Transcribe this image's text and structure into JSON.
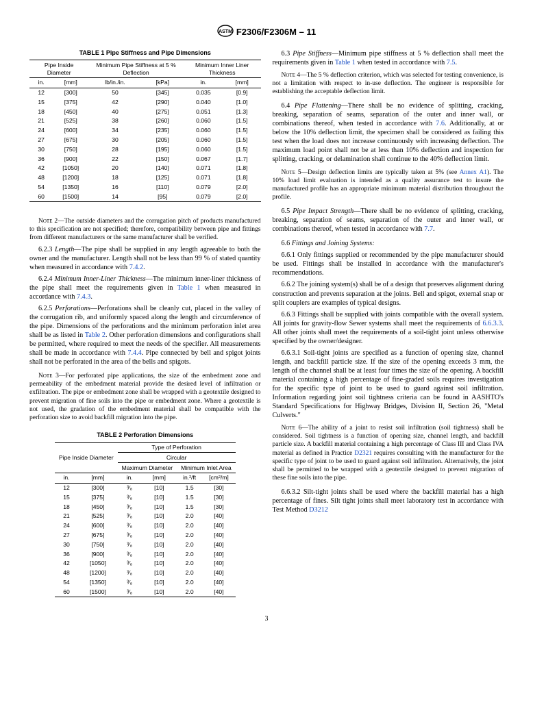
{
  "doc_code": "F2306/F2306M – 11",
  "table1": {
    "title": "TABLE 1 Pipe Stiffness and Pipe Dimensions",
    "headers": {
      "col1": "Pipe Inside Diameter",
      "col2": "Minimum Pipe Stiffness at 5 % Deflection",
      "col3": "Minimum Inner Liner Thickness",
      "u_in": "in.",
      "u_mm": "[mm]",
      "u_lb": "lb/in./in.",
      "u_kpa": "[kPa]",
      "u_in2": "in.",
      "u_mm2": "[mm]"
    },
    "rows": [
      [
        "12",
        "[300]",
        "50",
        "[345]",
        "0.035",
        "[0.9]"
      ],
      [
        "15",
        "[375]",
        "42",
        "[290]",
        "0.040",
        "[1.0]"
      ],
      [
        "18",
        "[450]",
        "40",
        "[275]",
        "0.051",
        "[1.3]"
      ],
      [
        "21",
        "[525]",
        "38",
        "[260]",
        "0.060",
        "[1.5]"
      ],
      [
        "24",
        "[600]",
        "34",
        "[235]",
        "0.060",
        "[1.5]"
      ],
      [
        "27",
        "[675]",
        "30",
        "[205]",
        "0.060",
        "[1.5]"
      ],
      [
        "30",
        "[750]",
        "28",
        "[195]",
        "0.060",
        "[1.5]"
      ],
      [
        "36",
        "[900]",
        "22",
        "[150]",
        "0.067",
        "[1.7]"
      ],
      [
        "42",
        "[1050]",
        "20",
        "[140]",
        "0.071",
        "[1.8]"
      ],
      [
        "48",
        "[1200]",
        "18",
        "[125]",
        "0.071",
        "[1.8]"
      ],
      [
        "54",
        "[1350]",
        "16",
        "[110]",
        "0.079",
        "[2.0]"
      ],
      [
        "60",
        "[1500]",
        "14",
        "[95]",
        "0.079",
        "[2.0]"
      ]
    ]
  },
  "table2": {
    "title": "TABLE 2 Perforation Dimensions",
    "headers": {
      "col1": "Pipe Inside Diameter",
      "top": "Type of Perforation",
      "group": "Circular",
      "sub1": "Maximum Diameter",
      "sub2": "Minimum Inlet Area",
      "u_in": "in.",
      "u_mm": "[mm]",
      "u_in2": "in.",
      "u_mm2": "[mm]",
      "u_area1": "in.²/ft",
      "u_area2": "[cm²/m]"
    },
    "rows": [
      [
        "12",
        "[300]",
        "³⁄₈",
        "[10]",
        "1.5",
        "[30]"
      ],
      [
        "15",
        "[375]",
        "³⁄₈",
        "[10]",
        "1.5",
        "[30]"
      ],
      [
        "18",
        "[450]",
        "³⁄₈",
        "[10]",
        "1.5",
        "[30]"
      ],
      [
        "21",
        "[525]",
        "³⁄₈",
        "[10]",
        "2.0",
        "[40]"
      ],
      [
        "24",
        "[600]",
        "³⁄₈",
        "[10]",
        "2.0",
        "[40]"
      ],
      [
        "27",
        "[675]",
        "³⁄₈",
        "[10]",
        "2.0",
        "[40]"
      ],
      [
        "30",
        "[750]",
        "³⁄₈",
        "[10]",
        "2.0",
        "[40]"
      ],
      [
        "36",
        "[900]",
        "³⁄₈",
        "[10]",
        "2.0",
        "[40]"
      ],
      [
        "42",
        "[1050]",
        "³⁄₈",
        "[10]",
        "2.0",
        "[40]"
      ],
      [
        "48",
        "[1200]",
        "³⁄₈",
        "[10]",
        "2.0",
        "[40]"
      ],
      [
        "54",
        "[1350]",
        "³⁄₈",
        "[10]",
        "2.0",
        "[40]"
      ],
      [
        "60",
        "[1500]",
        "³⁄₈",
        "[10]",
        "2.0",
        "[40]"
      ]
    ]
  },
  "left": {
    "note2_label": "Note 2—",
    "note2": "The outside diameters and the corrugation pitch of products manufactured to this specification are not specified; therefore, compatibility between pipe and fittings from different manufacturers or the same manufacturer shall be verified.",
    "p623a": "6.2.3 ",
    "p623b": "Length",
    "p623c": "—The pipe shall be supplied in any length agreeable to both the owner and the manufacturer. Length shall not be less than 99 % of stated quantity when measured in accordance with ",
    "p623d": "7.4.2",
    "p623e": ".",
    "p624a": "6.2.4 ",
    "p624b": "Minimum Inner-Liner Thickness",
    "p624c": "—The minimum inner-liner thickness of the pipe shall meet the requirements given in ",
    "p624d": "Table 1",
    "p624e": " when measured in accordance with ",
    "p624f": "7.4.3",
    "p624g": ".",
    "p625a": "6.2.5 ",
    "p625b": "Perforations",
    "p625c": "—Perforations shall be cleanly cut, placed in the valley of the corrugation rib, and uniformly spaced along the length and circumference of the pipe. Dimensions of the perforations and the minimum perforation inlet area shall be as listed in ",
    "p625d": "Table 2",
    "p625e": ". Other perforation dimensions and configurations shall be permitted, where required to meet the needs of the specifier. All measurements shall be made in accordance with ",
    "p625f": "7.4.4",
    "p625g": ". Pipe connected by bell and spigot joints shall not be perforated in the area of the bells and spigots.",
    "note3_label": "Note 3—",
    "note3": "For perforated pipe applications, the size of the embedment zone and permeability of the embedment material provide the desired level of infiltration or exfiltration. The pipe or embedment zone shall be wrapped with a geotextile designed to prevent migration of fine soils into the pipe or embedment zone. Where a geotextile is not used, the gradation of the embedment material shall be compatible with the perforation size to avoid backfill migration into the pipe."
  },
  "right": {
    "p63a": "6.3 ",
    "p63b": "Pipe Stiffness",
    "p63c": "—Minimum pipe stiffness at 5 % deflection shall meet the requirements given in ",
    "p63d": "Table 1",
    "p63e": " when tested in accordance with ",
    "p63f": "7.5",
    "p63g": ".",
    "note4_label": "Note 4—",
    "note4": "The 5 % deflection criterion, which was selected for testing convenience, is not a limitation with respect to in-use deflection. The engineer is responsible for establishing the acceptable deflection limit.",
    "p64a": "6.4 ",
    "p64b": "Pipe Flattening",
    "p64c": "—There shall be no evidence of splitting, cracking, breaking, separation of seams, separation of the outer and inner wall, or combinations thereof, when tested in accordance with ",
    "p64d": "7.6",
    "p64e": ". Additionally, at or below the 10% deflection limit, the specimen shall be considered as failing this test when the load does not increase continuously with increasing deflection. The maximum load point shall not be at less than 10% deflection and inspection for splitting, cracking, or delamination shall continue to the 40% deflection limit.",
    "note5_label": "Note 5—",
    "note5a": "Design deflection limits are typically taken at 5% (see ",
    "note5b": "Annex A1",
    "note5c": "). The 10% load limit evaluation is intended as a quality assurance test to insure the manufactured profile has an appropriate minimum material distribution throughout the profile.",
    "p65a": "6.5 ",
    "p65b": "Pipe Impact Strength",
    "p65c": "—There shall be no evidence of splitting, cracking, breaking, separation of seams, separation of the outer and inner wall, or combinations thereof, when tested in accordance with ",
    "p65d": "7.7",
    "p65e": ".",
    "p66a": "6.6 ",
    "p66b": "Fittings and Joining Systems:",
    "p661": "6.6.1 Only fittings supplied or recommended by the pipe manufacturer should be used. Fittings shall be installed in accordance with the manufacturer's recommendations.",
    "p662": "6.6.2 The joining system(s) shall be of a design that preserves alignment during construction and prevents separation at the joints. Bell and spigot, external snap or split couplers are examples of typical designs.",
    "p663a": "6.6.3 Fittings shall be supplied with joints compatible with the overall system. All joints for gravity-flow Sewer systems shall meet the requirements of ",
    "p663b": "6.6.3.3",
    "p663c": ". All other joints shall meet the requirements of a soil-tight joint unless otherwise specified by the owner/designer.",
    "p6631": "6.6.3.1 Soil-tight joints are specified as a function of opening size, channel length, and backfill particle size. If the size of the opening exceeds 3 mm, the length of the channel shall be at least four times the size of the opening. A backfill material containing a high percentage of fine-graded soils requires investigation for the specific type of joint to be used to guard against soil infiltration. Information regarding joint soil tightness criteria can be found in AASHTO's Standard Specifications for Highway Bridges, Division II, Section 26, \"Metal Culverts.\"",
    "note6_label": "Note 6—",
    "note6a": "The ability of a joint to resist soil infiltration (soil tightness) shall be considered. Soil tightness is a function of opening size, channel length, and backfill particle size. A backfill material containing a high percentage of Class III and Class IVA material as defined in Practice ",
    "note6b": "D2321",
    "note6c": " requires consulting with the manufacturer for the specific type of joint to be used to guard against soil infiltration. Alternatively, the joint shall be permitted to be wrapped with a geotextile designed to prevent migration of these fine soils into the pipe.",
    "p6632a": "6.6.3.2 Silt-tight joints shall be used where the backfill material has a high percentage of fines. Silt tight joints shall meet laboratory test in accordance with Test Method ",
    "p6632b": "D3212"
  },
  "pagenum": "3"
}
